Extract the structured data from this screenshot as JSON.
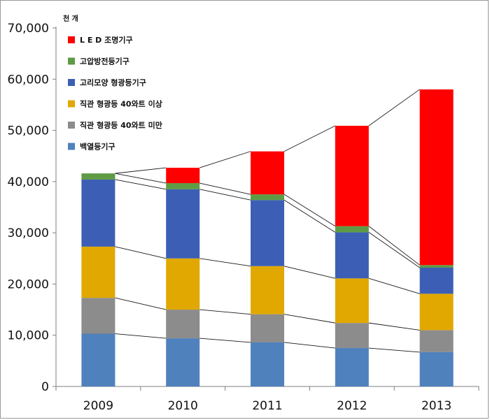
{
  "chart_data": {
    "type": "bar",
    "stacked": true,
    "unit_label": "천 개",
    "categories": [
      "2009",
      "2010",
      "2011",
      "2012",
      "2013"
    ],
    "ylim": [
      0,
      70000
    ],
    "yticks": [
      "0",
      "10,000",
      "20,000",
      "30,000",
      "40,000",
      "50,000",
      "60,000",
      "70,000"
    ],
    "ytick_values": [
      0,
      10000,
      20000,
      30000,
      40000,
      50000,
      60000,
      70000
    ],
    "legend_position": "top-left",
    "series": [
      {
        "name": "백열등기구",
        "color": "#4f81bd",
        "values": [
          10300,
          9400,
          8600,
          7500,
          6700
        ]
      },
      {
        "name": "직관 형광등 40와트 미만",
        "color": "#8c8c8c",
        "values": [
          7000,
          5600,
          5500,
          4900,
          4300
        ]
      },
      {
        "name": "직관 형광등 40와트 이상",
        "color": "#e0a800",
        "values": [
          10000,
          10000,
          9400,
          8700,
          7100
        ]
      },
      {
        "name": "고리모양 형광등기구",
        "color": "#3c5fb5",
        "values": [
          13100,
          13500,
          12900,
          9000,
          5100
        ]
      },
      {
        "name": "고압방전등기구",
        "color": "#5e9b44",
        "values": [
          1200,
          1200,
          1100,
          1200,
          500
        ]
      },
      {
        "name": "L E D 조명기구",
        "color": "#ff0000",
        "values": [
          0,
          3000,
          8400,
          19600,
          34300
        ]
      }
    ],
    "legend_order": [
      5,
      4,
      3,
      2,
      1,
      0
    ]
  }
}
